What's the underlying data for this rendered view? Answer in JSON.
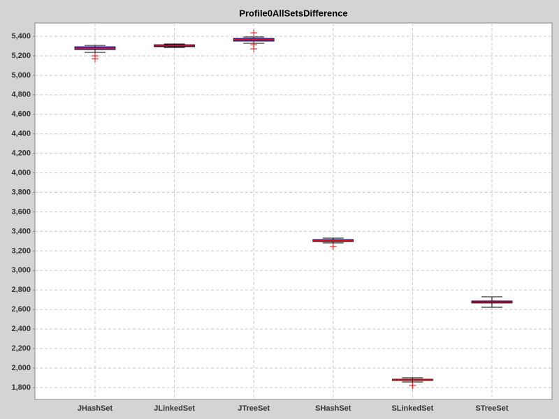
{
  "chart_data": {
    "type": "box",
    "title": "Profile0AllSetsDifference",
    "categories": [
      "JHashSet",
      "JLinkedSet",
      "JTreeSet",
      "SHashSet",
      "SLinkedSet",
      "STreeSet"
    ],
    "boxes": [
      {
        "whislo": 5235,
        "q1": 5264,
        "median": 5275,
        "q3": 5293,
        "whishi": 5307,
        "outliers": [
          5200,
          5170
        ]
      },
      {
        "whislo": 5285,
        "q1": 5293,
        "median": 5303,
        "q3": 5314,
        "whishi": 5321,
        "outliers": []
      },
      {
        "whislo": 5328,
        "q1": 5350,
        "median": 5365,
        "q3": 5379,
        "whishi": 5393,
        "outliers": [
          5436,
          5314,
          5271
        ]
      },
      {
        "whislo": 3282,
        "q1": 3296,
        "median": 3305,
        "q3": 3317,
        "whishi": 3331,
        "outliers": [
          3246
        ]
      },
      {
        "whislo": 1857,
        "q1": 1872,
        "median": 1878,
        "q3": 1886,
        "whishi": 1900,
        "outliers": [
          1821
        ]
      },
      {
        "whislo": 2623,
        "q1": 2666,
        "median": 2677,
        "q3": 2688,
        "whishi": 2730,
        "outliers": []
      }
    ],
    "box_color": "#3030ff",
    "median_color": "#ff0000",
    "outlier_color": "#ff0000",
    "ylim": [
      1678,
      5536
    ],
    "yticks": [
      {
        "value": 1800,
        "label": "1,800"
      },
      {
        "value": 2000,
        "label": "2,000"
      },
      {
        "value": 2200,
        "label": "2,200"
      },
      {
        "value": 2400,
        "label": "2,400"
      },
      {
        "value": 2600,
        "label": "2,600"
      },
      {
        "value": 2800,
        "label": "2,800"
      },
      {
        "value": 3000,
        "label": "3,000"
      },
      {
        "value": 3200,
        "label": "3,200"
      },
      {
        "value": 3400,
        "label": "3,400"
      },
      {
        "value": 3600,
        "label": "3,600"
      },
      {
        "value": 3800,
        "label": "3,800"
      },
      {
        "value": 4000,
        "label": "4,000"
      },
      {
        "value": 4200,
        "label": "4,200"
      },
      {
        "value": 4400,
        "label": "4,400"
      },
      {
        "value": 4600,
        "label": "4,600"
      },
      {
        "value": 4800,
        "label": "4,800"
      },
      {
        "value": 5000,
        "label": "5,000"
      },
      {
        "value": 5200,
        "label": "5,200"
      },
      {
        "value": 5400,
        "label": "5,400"
      }
    ],
    "grid": true
  }
}
